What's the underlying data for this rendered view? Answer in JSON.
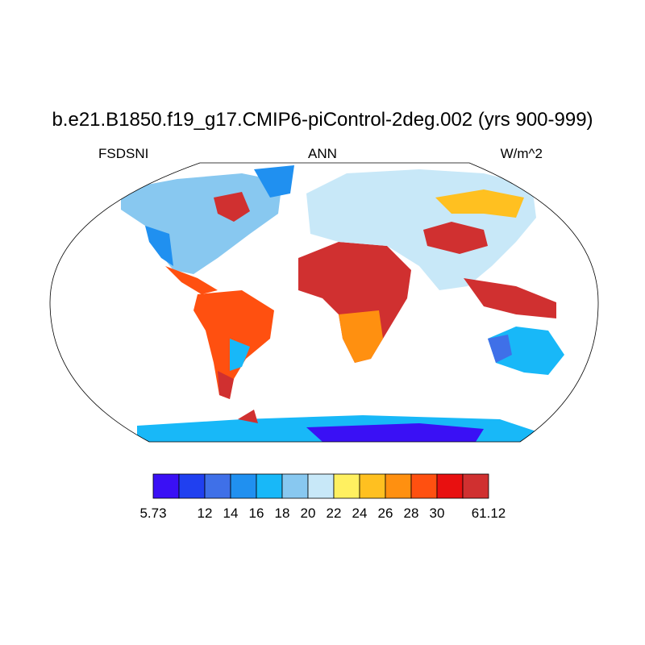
{
  "title": "b.e21.B1850.f19_g17.CMIP6-piControl-2deg.002 (yrs 900-999)",
  "left_label": "FSDSNI",
  "center_label": "ANN",
  "right_label": "W/m^2",
  "colorbar": {
    "colors": [
      "#3a10f5",
      "#2040f0",
      "#3f70e8",
      "#2090f0",
      "#18b8f8",
      "#88c8f0",
      "#c8e8f8",
      "#fff060",
      "#ffc020",
      "#ff9010",
      "#ff5010",
      "#e81010",
      "#d03030"
    ],
    "levels": [
      5.73,
      null,
      12,
      14,
      16,
      18,
      20,
      22,
      24,
      26,
      28,
      30,
      null,
      61.12
    ]
  }
}
